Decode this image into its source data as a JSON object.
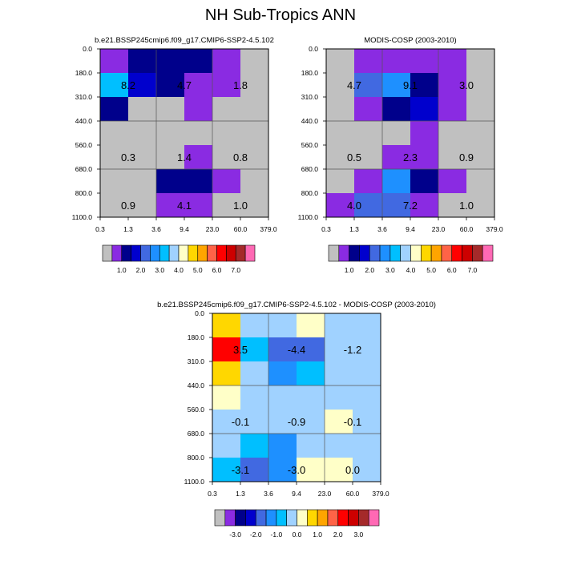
{
  "title": "NH Sub-Tropics ANN",
  "x_ticks": [
    "0.3",
    "1.3",
    "3.6",
    "9.4",
    "23.0",
    "60.0",
    "379.0"
  ],
  "y_ticks": [
    "0.0",
    "180.0",
    "310.0",
    "440.0",
    "560.0",
    "680.0",
    "800.0",
    "1100.0"
  ],
  "colors": {
    "abs": [
      "#c0c0c0",
      "#8a2be2",
      "#00008b",
      "#0000cd",
      "#4169e1",
      "#1e90ff",
      "#00bfff",
      "#a0d2ff",
      "#ffffc8",
      "#ffd700",
      "#ffa500",
      "#ff6347",
      "#ff0000",
      "#cd0000",
      "#a52a2a",
      "#ff69b4"
    ],
    "diff": [
      "#c0c0c0",
      "#8a2be2",
      "#00008b",
      "#0000cd",
      "#4169e1",
      "#1e90ff",
      "#00bfff",
      "#a0d2ff",
      "#ffffc8",
      "#ffd700",
      "#ffa500",
      "#ff6347",
      "#ff0000",
      "#cd0000",
      "#a52a2a",
      "#ff69b4"
    ]
  },
  "colorbars": {
    "abs_labels": [
      "1.0",
      "2.0",
      "3.0",
      "4.0",
      "5.0",
      "6.0",
      "7.0"
    ],
    "diff_labels": [
      "-3.0",
      "-2.0",
      "-1.0",
      "0.0",
      "1.0",
      "2.0",
      "3.0"
    ]
  },
  "chart_data": [
    {
      "type": "heatmap",
      "title": "b.e21.BSSP245cmip6.f09_g17.CMIP6-SSP2-4.5.102",
      "grid_index": [
        [
          1,
          2,
          2,
          2,
          1,
          0
        ],
        [
          6,
          3,
          2,
          1,
          1,
          0
        ],
        [
          2,
          0,
          0,
          1,
          0,
          0
        ],
        [
          0,
          0,
          0,
          0,
          0,
          0
        ],
        [
          0,
          0,
          0,
          1,
          0,
          0
        ],
        [
          0,
          0,
          2,
          2,
          1,
          0
        ],
        [
          0,
          0,
          1,
          1,
          0,
          0
        ]
      ],
      "totals": [
        {
          "col": 0,
          "row": 1,
          "value": "8.2"
        },
        {
          "col": 2,
          "row": 1,
          "value": "4.7"
        },
        {
          "col": 4,
          "row": 1,
          "value": "1.8"
        },
        {
          "col": 0,
          "row": 4,
          "value": "0.3"
        },
        {
          "col": 2,
          "row": 4,
          "value": "1.4"
        },
        {
          "col": 4,
          "row": 4,
          "value": "0.8"
        },
        {
          "col": 0,
          "row": 6,
          "value": "0.9"
        },
        {
          "col": 2,
          "row": 6,
          "value": "4.1"
        },
        {
          "col": 4,
          "row": 6,
          "value": "1.0"
        }
      ]
    },
    {
      "type": "heatmap",
      "title": "MODIS-COSP (2003-2010)",
      "grid_index": [
        [
          0,
          1,
          1,
          1,
          1,
          0
        ],
        [
          0,
          4,
          5,
          2,
          1,
          0
        ],
        [
          0,
          1,
          2,
          3,
          1,
          0
        ],
        [
          0,
          0,
          0,
          1,
          0,
          0
        ],
        [
          0,
          0,
          1,
          1,
          0,
          0
        ],
        [
          0,
          1,
          5,
          2,
          1,
          0
        ],
        [
          1,
          4,
          4,
          1,
          0,
          0
        ]
      ],
      "totals": [
        {
          "col": 0,
          "row": 1,
          "value": "4.7"
        },
        {
          "col": 2,
          "row": 1,
          "value": "9.1"
        },
        {
          "col": 4,
          "row": 1,
          "value": "3.0"
        },
        {
          "col": 0,
          "row": 4,
          "value": "0.5"
        },
        {
          "col": 2,
          "row": 4,
          "value": "2.3"
        },
        {
          "col": 4,
          "row": 4,
          "value": "0.9"
        },
        {
          "col": 0,
          "row": 6,
          "value": "4.0"
        },
        {
          "col": 2,
          "row": 6,
          "value": "7.2"
        },
        {
          "col": 4,
          "row": 6,
          "value": "1.0"
        }
      ]
    },
    {
      "type": "heatmap",
      "title": "b.e21.BSSP245cmip6.f09_g17.CMIP6-SSP2-4.5.102 - MODIS-COSP (2003-2010)",
      "grid_index": [
        [
          9,
          7,
          7,
          8,
          7,
          7
        ],
        [
          12,
          6,
          4,
          4,
          7,
          7
        ],
        [
          9,
          7,
          5,
          6,
          7,
          7
        ],
        [
          8,
          7,
          7,
          7,
          7,
          7
        ],
        [
          7,
          7,
          7,
          7,
          8,
          7
        ],
        [
          7,
          6,
          5,
          7,
          7,
          7
        ],
        [
          6,
          4,
          5,
          8,
          8,
          7
        ]
      ],
      "totals": [
        {
          "col": 0,
          "row": 1,
          "value": "3.5"
        },
        {
          "col": 2,
          "row": 1,
          "value": "-4.4"
        },
        {
          "col": 4,
          "row": 1,
          "value": "-1.2"
        },
        {
          "col": 0,
          "row": 4,
          "value": "-0.1"
        },
        {
          "col": 2,
          "row": 4,
          "value": "-0.9"
        },
        {
          "col": 4,
          "row": 4,
          "value": "-0.1"
        },
        {
          "col": 0,
          "row": 6,
          "value": "-3.1"
        },
        {
          "col": 2,
          "row": 6,
          "value": "-3.0"
        },
        {
          "col": 4,
          "row": 6,
          "value": "0.0"
        }
      ]
    }
  ]
}
